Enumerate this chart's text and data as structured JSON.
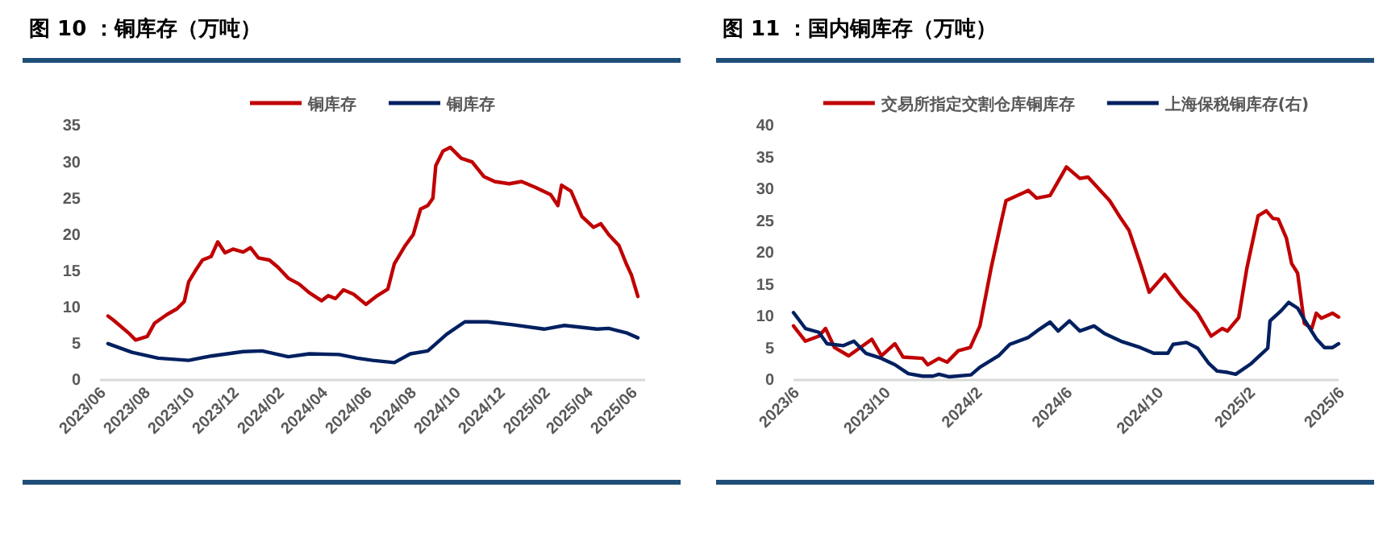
{
  "chart_data": [
    {
      "type": "line",
      "title": "图 10 ：铜库存（万吨）",
      "legend": "top",
      "marker": "none",
      "grid": false,
      "xlim": [
        "2023-06-01",
        "2025-06-20"
      ],
      "xticks": [
        {
          "value": "2023-06-01",
          "label": "2023/06"
        },
        {
          "value": "2023-08-01",
          "label": "2023/08"
        },
        {
          "value": "2023-10-01",
          "label": "2023/10"
        },
        {
          "value": "2023-12-01",
          "label": "2023/12"
        },
        {
          "value": "2024-02-01",
          "label": "2024/02"
        },
        {
          "value": "2024-04-01",
          "label": "2024/04"
        },
        {
          "value": "2024-06-01",
          "label": "2024/06"
        },
        {
          "value": "2024-08-01",
          "label": "2024/08"
        },
        {
          "value": "2024-10-01",
          "label": "2024/10"
        },
        {
          "value": "2024-12-01",
          "label": "2024/12"
        },
        {
          "value": "2025-02-01",
          "label": "2025/02"
        },
        {
          "value": "2025-04-01",
          "label": "2025/04"
        },
        {
          "value": "2025-06-01",
          "label": "2025/06"
        }
      ],
      "ylim": [
        0,
        35
      ],
      "yticks": [
        0,
        5,
        10,
        15,
        20,
        25,
        30,
        35
      ],
      "series": [
        {
          "name": "铜库存",
          "color": "#c00000",
          "x": [
            "2023-06-12",
            "2023-06-20",
            "2023-07-10",
            "2023-07-20",
            "2023-08-05",
            "2023-08-15",
            "2023-09-01",
            "2023-09-15",
            "2023-09-25",
            "2023-10-01",
            "2023-10-10",
            "2023-10-20",
            "2023-11-01",
            "2023-11-10",
            "2023-11-20",
            "2023-12-01",
            "2023-12-15",
            "2023-12-25",
            "2024-01-05",
            "2024-01-20",
            "2024-02-01",
            "2024-02-15",
            "2024-03-01",
            "2024-03-15",
            "2024-04-01",
            "2024-04-10",
            "2024-04-20",
            "2024-05-01",
            "2024-05-15",
            "2024-06-01",
            "2024-06-15",
            "2024-07-01",
            "2024-07-10",
            "2024-07-25",
            "2024-08-05",
            "2024-08-15",
            "2024-08-25",
            "2024-09-01",
            "2024-09-05",
            "2024-09-15",
            "2024-09-25",
            "2024-10-10",
            "2024-10-25",
            "2024-11-10",
            "2024-11-25",
            "2024-12-15",
            "2025-01-01",
            "2025-01-20",
            "2025-02-10",
            "2025-02-20",
            "2025-02-25",
            "2025-03-10",
            "2025-03-25",
            "2025-04-10",
            "2025-04-20",
            "2025-05-01",
            "2025-05-15",
            "2025-05-25",
            "2025-06-01",
            "2025-06-10"
          ],
          "values": [
            8.8,
            8.2,
            6.5,
            5.5,
            6.0,
            7.8,
            9.0,
            9.8,
            10.8,
            13.5,
            15.0,
            16.5,
            17.0,
            19.0,
            17.5,
            18.0,
            17.6,
            18.2,
            16.8,
            16.5,
            15.5,
            14.0,
            13.2,
            12.0,
            10.9,
            11.6,
            11.2,
            12.4,
            11.8,
            10.4,
            11.5,
            12.5,
            16.0,
            18.5,
            20.0,
            23.5,
            24.0,
            25.0,
            29.5,
            31.5,
            32.0,
            30.5,
            30.0,
            28.0,
            27.3,
            27.0,
            27.3,
            26.5,
            25.5,
            24.0,
            26.8,
            26.0,
            22.5,
            21.0,
            21.5,
            20.0,
            18.5,
            16.0,
            14.5,
            11.5
          ]
        },
        {
          "name": "铜库存",
          "color": "#002060",
          "x": [
            "2023-06-12",
            "2023-07-15",
            "2023-08-20",
            "2023-10-01",
            "2023-11-01",
            "2023-12-15",
            "2024-01-10",
            "2024-02-15",
            "2024-03-15",
            "2024-04-25",
            "2024-05-20",
            "2024-06-10",
            "2024-07-10",
            "2024-08-01",
            "2024-08-25",
            "2024-09-20",
            "2024-10-15",
            "2024-11-15",
            "2024-12-20",
            "2025-02-01",
            "2025-03-01",
            "2025-04-15",
            "2025-05-01",
            "2025-05-25",
            "2025-06-10"
          ],
          "values": [
            5.0,
            3.8,
            3.0,
            2.7,
            3.3,
            3.9,
            4.0,
            3.2,
            3.6,
            3.5,
            3.0,
            2.7,
            2.4,
            3.6,
            4.0,
            6.3,
            8.0,
            8.0,
            7.6,
            7.0,
            7.5,
            7.0,
            7.1,
            6.5,
            5.8
          ]
        }
      ]
    },
    {
      "type": "line",
      "title": "图 11 ：国内铜库存（万吨）",
      "legend": "top",
      "marker": "none",
      "grid": false,
      "xlim": [
        "2023-06-01",
        "2025-06-01"
      ],
      "xticks": [
        {
          "value": "2023-06-01",
          "label": "2023/6"
        },
        {
          "value": "2023-10-01",
          "label": "2023/10"
        },
        {
          "value": "2024-02-01",
          "label": "2024/2"
        },
        {
          "value": "2024-06-01",
          "label": "2024/6"
        },
        {
          "value": "2024-10-01",
          "label": "2024/10"
        },
        {
          "value": "2025-02-01",
          "label": "2025/2"
        },
        {
          "value": "2025-06-01",
          "label": "2025/6"
        }
      ],
      "ylim": [
        0,
        40
      ],
      "yticks": [
        0,
        5,
        10,
        15,
        20,
        25,
        30,
        35,
        40
      ],
      "series": [
        {
          "name": "交易所指定交割仓库铜库存",
          "color": "#c00000",
          "x": [
            "2023-06-01",
            "2023-06-17",
            "2023-07-05",
            "2023-07-14",
            "2023-07-26",
            "2023-08-14",
            "2023-09-14",
            "2023-09-27",
            "2023-10-15",
            "2023-10-26",
            "2023-11-21",
            "2023-11-28",
            "2023-12-13",
            "2023-12-24",
            "2024-01-08",
            "2024-01-24",
            "2024-02-06",
            "2024-02-21",
            "2024-03-05",
            "2024-03-12",
            "2024-04-11",
            "2024-04-22",
            "2024-05-10",
            "2024-06-01",
            "2024-06-19",
            "2024-06-30",
            "2024-07-29",
            "2024-08-13",
            "2024-08-24",
            "2024-09-08",
            "2024-09-20",
            "2024-10-11",
            "2024-11-02",
            "2024-11-24",
            "2024-12-12",
            "2024-12-27",
            "2025-01-03",
            "2025-01-18",
            "2025-01-29",
            "2025-02-13",
            "2025-02-24",
            "2025-03-05",
            "2025-03-12",
            "2025-03-23",
            "2025-03-30",
            "2025-04-07",
            "2025-04-16",
            "2025-04-26",
            "2025-05-02",
            "2025-05-09",
            "2025-05-24",
            "2025-06-01"
          ],
          "values": [
            8.5,
            6.1,
            6.9,
            8.1,
            5.1,
            3.8,
            6.4,
            3.8,
            5.7,
            3.6,
            3.4,
            2.4,
            3.4,
            2.8,
            4.6,
            5.1,
            8.5,
            17.6,
            24.6,
            28.2,
            29.8,
            28.6,
            29.0,
            33.5,
            31.7,
            31.9,
            28.2,
            25.4,
            23.5,
            18.3,
            13.8,
            16.6,
            13.2,
            10.5,
            6.9,
            8.1,
            7.7,
            9.8,
            17.6,
            25.8,
            26.6,
            25.4,
            25.3,
            22.3,
            18.3,
            16.8,
            8.9,
            8.1,
            10.5,
            9.7,
            10.5,
            9.9
          ]
        },
        {
          "name": "上海保税铜库存(右)",
          "color": "#002060",
          "x": [
            "2023-06-01",
            "2023-06-17",
            "2023-07-05",
            "2023-07-16",
            "2023-08-07",
            "2023-08-21",
            "2023-09-06",
            "2023-09-27",
            "2023-10-15",
            "2023-11-02",
            "2023-11-21",
            "2023-12-05",
            "2023-12-13",
            "2023-12-27",
            "2024-01-25",
            "2024-02-06",
            "2024-03-02",
            "2024-03-17",
            "2024-04-11",
            "2024-04-26",
            "2024-05-10",
            "2024-05-21",
            "2024-06-05",
            "2024-06-19",
            "2024-07-08",
            "2024-07-22",
            "2024-08-13",
            "2024-09-08",
            "2024-09-26",
            "2024-10-15",
            "2024-10-22",
            "2024-11-09",
            "2024-11-24",
            "2024-12-09",
            "2024-12-20",
            "2025-01-03",
            "2025-01-14",
            "2025-02-04",
            "2025-02-15",
            "2025-02-26",
            "2025-03-01",
            "2025-03-16",
            "2025-03-26",
            "2025-04-07",
            "2025-04-17",
            "2025-05-02",
            "2025-05-13",
            "2025-05-24",
            "2025-06-01"
          ],
          "values": [
            10.6,
            8.1,
            7.5,
            5.7,
            5.4,
            6.1,
            4.2,
            3.4,
            2.4,
            1.0,
            0.6,
            0.6,
            0.9,
            0.5,
            0.8,
            2.0,
            3.8,
            5.6,
            6.7,
            8.0,
            9.1,
            7.7,
            9.3,
            7.7,
            8.5,
            7.3,
            6.1,
            5.1,
            4.2,
            4.2,
            5.6,
            5.9,
            5.0,
            2.6,
            1.4,
            1.2,
            0.9,
            2.6,
            3.8,
            5.0,
            9.3,
            10.9,
            12.2,
            11.3,
            9.3,
            6.5,
            5.1,
            5.1,
            5.7
          ]
        }
      ]
    }
  ]
}
